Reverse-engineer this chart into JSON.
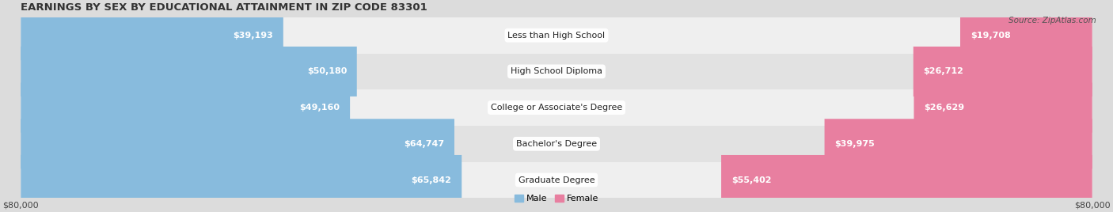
{
  "title": "EARNINGS BY SEX BY EDUCATIONAL ATTAINMENT IN ZIP CODE 83301",
  "source": "Source: ZipAtlas.com",
  "categories": [
    "Less than High School",
    "High School Diploma",
    "College or Associate's Degree",
    "Bachelor's Degree",
    "Graduate Degree"
  ],
  "male_values": [
    39193,
    50180,
    49160,
    64747,
    65842
  ],
  "female_values": [
    19708,
    26712,
    26629,
    39975,
    55402
  ],
  "male_labels": [
    "$39,193",
    "$50,180",
    "$49,160",
    "$64,747",
    "$65,842"
  ],
  "female_labels": [
    "$19,708",
    "$26,712",
    "$26,629",
    "$39,975",
    "$55,402"
  ],
  "x_max": 80000,
  "male_color": "#88BBDD",
  "female_color": "#E87FA0",
  "bg_color": "#DCDCDC",
  "row_colors": [
    "#EFEFEF",
    "#E2E2E2"
  ],
  "title_fontsize": 9.5,
  "label_fontsize": 8,
  "tick_fontsize": 8,
  "cat_fontsize": 8
}
